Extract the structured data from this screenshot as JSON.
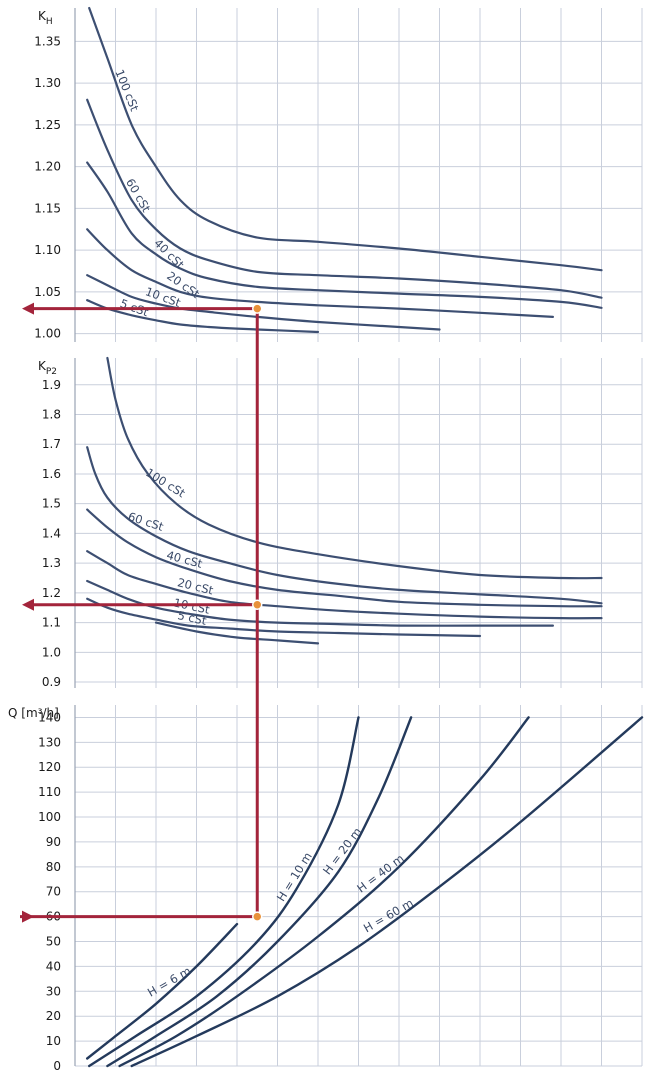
{
  "chart_data": [
    {
      "type": "line",
      "ylabel_main": "K",
      "ylabel_sub": "H",
      "yticks": [
        "1.35",
        "1.30",
        "1.25",
        "1.20",
        "1.15",
        "1.10",
        "1.05",
        "1.00"
      ],
      "ytick_values": [
        1.35,
        1.3,
        1.25,
        1.2,
        1.15,
        1.1,
        1.05,
        1.0
      ],
      "ylim": [
        0.99,
        1.39
      ],
      "xlim": [
        0,
        14
      ],
      "grid": true,
      "series": [
        {
          "name": "100 cSt",
          "x": [
            0.35,
            0.8,
            1.4,
            2.0,
            2.6,
            3.3,
            4.5,
            6.0,
            8.0,
            10.0,
            12.0,
            13.0
          ],
          "y": [
            1.39,
            1.33,
            1.25,
            1.2,
            1.16,
            1.135,
            1.115,
            1.11,
            1.102,
            1.092,
            1.082,
            1.076
          ]
        },
        {
          "name": "60 cSt",
          "x": [
            0.3,
            0.8,
            1.4,
            2.0,
            2.6,
            3.3,
            4.5,
            6.0,
            8.0,
            10.0,
            12.0,
            13.0
          ],
          "y": [
            1.28,
            1.22,
            1.16,
            1.125,
            1.102,
            1.088,
            1.074,
            1.07,
            1.066,
            1.06,
            1.052,
            1.043
          ]
        },
        {
          "name": "40 cSt",
          "x": [
            0.3,
            0.8,
            1.4,
            2.0,
            2.6,
            3.3,
            4.5,
            6.0,
            8.0,
            10.0,
            12.0,
            13.0
          ],
          "y": [
            1.205,
            1.17,
            1.12,
            1.095,
            1.078,
            1.066,
            1.056,
            1.052,
            1.048,
            1.044,
            1.038,
            1.031
          ]
        },
        {
          "name": "20 cSt",
          "x": [
            0.3,
            0.8,
            1.4,
            2.0,
            2.6,
            3.3,
            4.5,
            6.0,
            8.0,
            10.0,
            11.8
          ],
          "y": [
            1.125,
            1.1,
            1.076,
            1.062,
            1.05,
            1.043,
            1.038,
            1.034,
            1.03,
            1.025,
            1.02
          ]
        },
        {
          "name": "10 cSt",
          "x": [
            0.3,
            0.8,
            1.4,
            2.0,
            2.6,
            3.3,
            4.5,
            6.0,
            8.0,
            9.0
          ],
          "y": [
            1.07,
            1.058,
            1.044,
            1.036,
            1.03,
            1.026,
            1.02,
            1.014,
            1.008,
            1.005
          ]
        },
        {
          "name": "5 cSt",
          "x": [
            0.3,
            0.8,
            1.4,
            2.0,
            2.6,
            3.3,
            4.0,
            5.0,
            6.0
          ],
          "y": [
            1.04,
            1.03,
            1.022,
            1.016,
            1.011,
            1.008,
            1.006,
            1.004,
            1.002
          ]
        }
      ]
    },
    {
      "type": "line",
      "ylabel_main": "K",
      "ylabel_sub": "P2",
      "yticks": [
        "1.9",
        "1.8",
        "1.7",
        "1.6",
        "1.5",
        "1.4",
        "1.3",
        "1.2",
        "1.1",
        "1.0",
        "0.9"
      ],
      "ytick_values": [
        1.9,
        1.8,
        1.7,
        1.6,
        1.5,
        1.4,
        1.3,
        1.2,
        1.1,
        1.0,
        0.9
      ],
      "ylim": [
        0.88,
        1.99
      ],
      "xlim": [
        0,
        14
      ],
      "grid": true,
      "series": [
        {
          "name": "100 cSt",
          "x": [
            0.8,
            1.0,
            1.3,
            1.8,
            2.5,
            3.3,
            4.5,
            6.0,
            8.0,
            10.0,
            12.0,
            13.0
          ],
          "y": [
            1.99,
            1.85,
            1.72,
            1.6,
            1.5,
            1.43,
            1.37,
            1.33,
            1.29,
            1.26,
            1.25,
            1.25
          ]
        },
        {
          "name": "60 cSt",
          "x": [
            0.3,
            0.5,
            0.8,
            1.3,
            2.0,
            2.8,
            3.8,
            5.0,
            6.5,
            8.0,
            10.0,
            12.0,
            13.0
          ],
          "y": [
            1.69,
            1.6,
            1.52,
            1.45,
            1.39,
            1.34,
            1.3,
            1.26,
            1.23,
            1.21,
            1.195,
            1.18,
            1.165
          ]
        },
        {
          "name": "40 cSt",
          "x": [
            0.3,
            0.8,
            1.3,
            2.0,
            2.8,
            3.8,
            5.0,
            6.5,
            8.0,
            10.0,
            12.0,
            13.0
          ],
          "y": [
            1.48,
            1.42,
            1.37,
            1.32,
            1.28,
            1.24,
            1.21,
            1.19,
            1.17,
            1.16,
            1.155,
            1.155
          ]
        },
        {
          "name": "20 cSt",
          "x": [
            0.3,
            0.8,
            1.3,
            2.0,
            2.8,
            3.8,
            5.0,
            6.5,
            8.0,
            10.0,
            12.0,
            13.0
          ],
          "y": [
            1.34,
            1.3,
            1.26,
            1.23,
            1.2,
            1.17,
            1.155,
            1.14,
            1.13,
            1.12,
            1.115,
            1.115
          ]
        },
        {
          "name": "10 cSt",
          "x": [
            0.3,
            0.8,
            1.3,
            2.0,
            2.8,
            3.8,
            5.0,
            6.5,
            8.0,
            10.0,
            11.8
          ],
          "y": [
            1.24,
            1.21,
            1.18,
            1.15,
            1.13,
            1.11,
            1.1,
            1.095,
            1.09,
            1.09,
            1.09
          ]
        },
        {
          "name": "5 cSt",
          "x": [
            0.3,
            0.8,
            1.3,
            2.0,
            2.8,
            3.8,
            5.0,
            6.5,
            8.0,
            10.0
          ],
          "y": [
            1.18,
            1.15,
            1.13,
            1.11,
            1.09,
            1.08,
            1.07,
            1.065,
            1.06,
            1.055
          ]
        },
        {
          "name": "",
          "x": [
            2.0,
            3.0,
            4.0,
            5.0,
            6.0
          ],
          "y": [
            1.1,
            1.07,
            1.05,
            1.04,
            1.03
          ]
        }
      ]
    },
    {
      "type": "line",
      "ylabel": "Q  [m³/h]",
      "yticks": [
        "140",
        "130",
        "120",
        "110",
        "100",
        "90",
        "80",
        "70",
        "60",
        "50",
        "40",
        "30",
        "20",
        "10",
        "0"
      ],
      "ytick_values": [
        140,
        130,
        120,
        110,
        100,
        90,
        80,
        70,
        60,
        50,
        40,
        30,
        20,
        10,
        0
      ],
      "ylim": [
        0,
        145
      ],
      "xlim": [
        0,
        14
      ],
      "grid": true,
      "series": [
        {
          "name": "H = 6 m",
          "x": [
            0.3,
            1.0,
            2.0,
            3.0,
            4.0
          ],
          "y": [
            3,
            12,
            25,
            40,
            57
          ]
        },
        {
          "name": "H = 10 m",
          "x": [
            0.35,
            1.5,
            3.0,
            4.5,
            5.5,
            6.5,
            7.0
          ],
          "y": [
            0,
            12,
            28,
            50,
            72,
            105,
            140
          ]
        },
        {
          "name": "H = 20 m",
          "x": [
            0.8,
            2.0,
            3.5,
            5.0,
            6.5,
            7.5,
            8.3
          ],
          "y": [
            0,
            12,
            28,
            50,
            78,
            108,
            140
          ]
        },
        {
          "name": "H = 40 m",
          "x": [
            1.1,
            2.5,
            4.0,
            6.0,
            8.0,
            10.0,
            11.2
          ],
          "y": [
            0,
            12,
            28,
            52,
            80,
            115,
            140
          ]
        },
        {
          "name": "H = 60 m",
          "x": [
            1.4,
            3.0,
            5.0,
            7.0,
            9.0,
            11.0,
            14.0
          ],
          "y": [
            0,
            12,
            28,
            48,
            72,
            98,
            140
          ]
        }
      ]
    }
  ],
  "reading": {
    "x": 4.5,
    "kh": 1.03,
    "kp2": 1.16,
    "q": 60
  }
}
